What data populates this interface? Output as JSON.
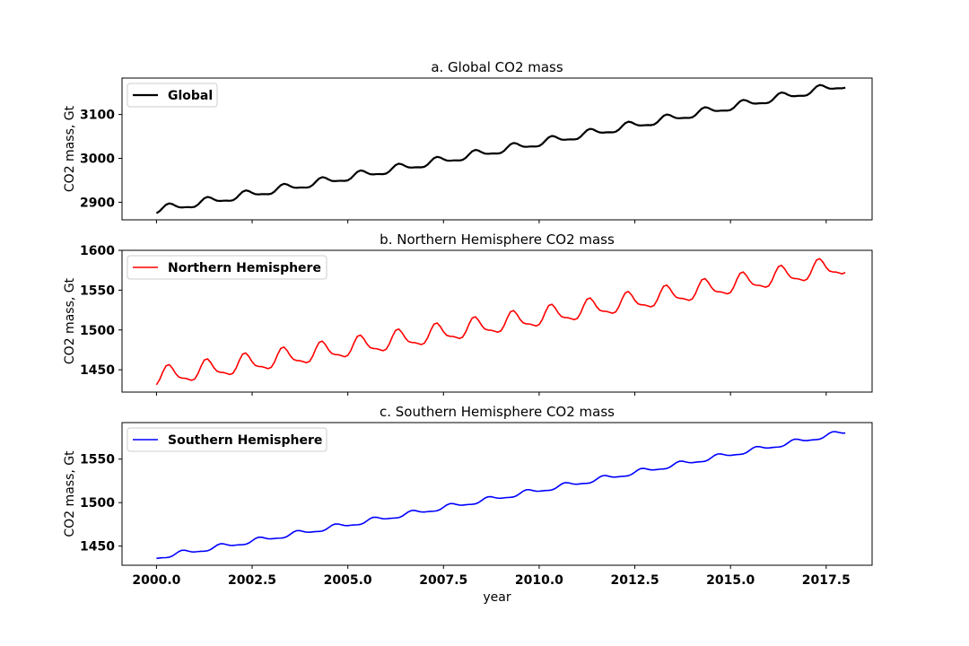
{
  "chart_data": [
    {
      "type": "line",
      "title": "a. Global CO2 mass",
      "ylabel": "CO2 mass, Gt",
      "xlabel": "",
      "xlim": [
        1999.1,
        2018.7
      ],
      "ylim": [
        2860,
        3183
      ],
      "yticks": [
        2900,
        3000,
        3100
      ],
      "xticks": [
        2000.0,
        2002.5,
        2005.0,
        2007.5,
        2010.0,
        2012.5,
        2015.0,
        2017.5
      ],
      "show_xtick_labels": false,
      "legend": "top-left",
      "series": [
        {
          "name": "Global",
          "color": "#000000",
          "x_start": 2000.0,
          "x_end": 2018.0,
          "start_value": 2882,
          "end_value": 3168,
          "seasonal_amplitude": 8,
          "peak_phase": 0.35
        }
      ]
    },
    {
      "type": "line",
      "title": "b. Northern Hemisphere CO2 mass",
      "ylabel": "CO2 mass, Gt",
      "xlabel": "",
      "xlim": [
        1999.1,
        2018.7
      ],
      "ylim": [
        1422,
        1600
      ],
      "yticks": [
        1450,
        1500,
        1550,
        1600
      ],
      "xticks": [
        2000.0,
        2002.5,
        2005.0,
        2007.5,
        2010.0,
        2012.5,
        2015.0,
        2017.5
      ],
      "show_xtick_labels": false,
      "legend": "top-left",
      "series": [
        {
          "name": "Northern Hemisphere",
          "color": "#ff0000",
          "x_start": 2000.0,
          "x_end": 2018.0,
          "start_value": 1440,
          "end_value": 1581,
          "seasonal_amplitude": 11,
          "peak_phase": 0.33
        }
      ]
    },
    {
      "type": "line",
      "title": "c. Southern Hemisphere CO2 mass",
      "ylabel": "CO2 mass, Gt",
      "xlabel": "year",
      "xlim": [
        1999.1,
        2018.7
      ],
      "ylim": [
        1428,
        1592
      ],
      "yticks": [
        1450,
        1500,
        1550
      ],
      "xticks": [
        2000.0,
        2002.5,
        2005.0,
        2007.5,
        2010.0,
        2012.5,
        2015.0,
        2017.5
      ],
      "xtick_labels": [
        "2000.0",
        "2002.5",
        "2005.0",
        "2007.5",
        "2010.0",
        "2012.5",
        "2015.0",
        "2017.5"
      ],
      "show_xtick_labels": true,
      "legend": "top-left",
      "series": [
        {
          "name": "Southern Hemisphere",
          "color": "#0000ff",
          "x_start": 2000.0,
          "x_end": 2018.0,
          "start_value": 1437,
          "end_value": 1581,
          "seasonal_amplitude": 2.5,
          "peak_phase": 0.7
        }
      ]
    }
  ]
}
